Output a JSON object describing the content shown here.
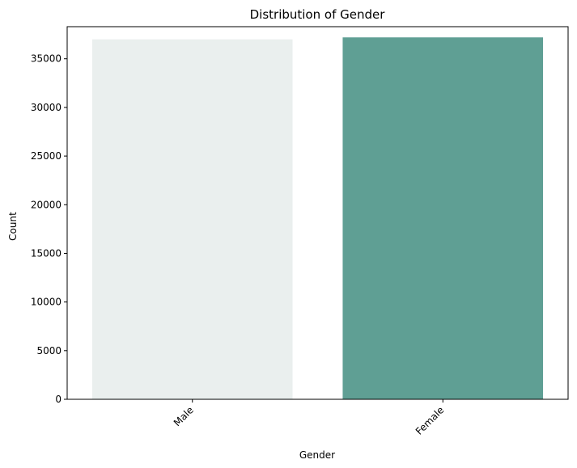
{
  "chart_data": {
    "type": "bar",
    "title": "Distribution of Gender",
    "xlabel": "Gender",
    "ylabel": "Count",
    "categories": [
      "Male",
      "Female"
    ],
    "values": [
      37000,
      37200
    ],
    "colors": [
      "#EAEFEE",
      "#5F9F94"
    ],
    "ylim": [
      0,
      38300
    ],
    "yticks": [
      0,
      5000,
      10000,
      15000,
      20000,
      25000,
      30000,
      35000
    ],
    "xtick_rotation": 45,
    "grid": false,
    "legend": "none"
  }
}
